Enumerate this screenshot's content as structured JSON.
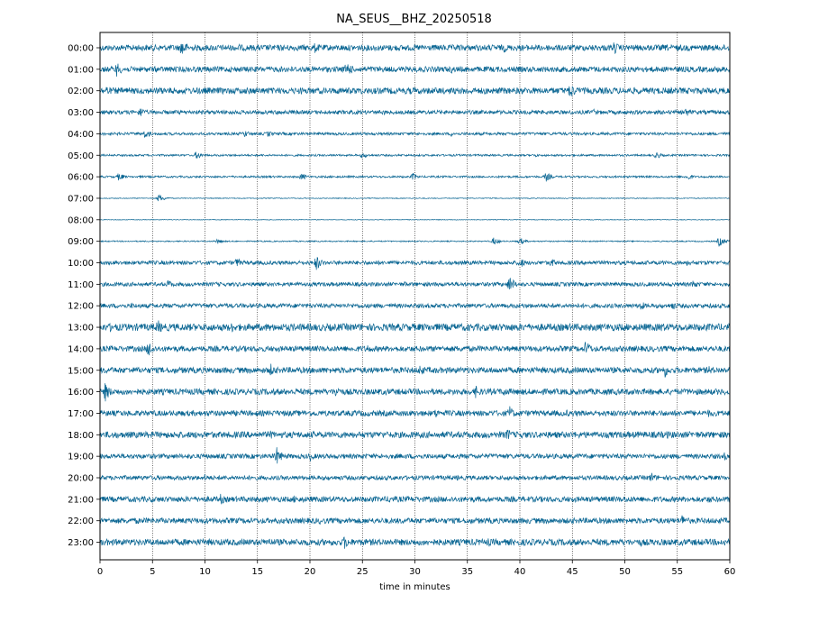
{
  "chart_data": {
    "type": "line",
    "title": "NA_SEUS__BHZ_20250518",
    "xlabel": "time in minutes",
    "ylabel": "",
    "xlim": [
      0,
      60
    ],
    "x_ticks": [
      "0",
      "5",
      "10",
      "15",
      "20",
      "25",
      "30",
      "35",
      "40",
      "45",
      "50",
      "55",
      "60"
    ],
    "grid": "vertical dotted lines every 5 minutes",
    "trace_color": "#0a6693",
    "rows": [
      {
        "label": "00:00",
        "noise": 0.3,
        "events": [
          [
            7.8,
            1.0
          ],
          [
            20.5,
            0.6
          ],
          [
            49.0,
            0.7
          ],
          [
            13.2,
            0.45
          ],
          [
            38.5,
            0.5
          ]
        ]
      },
      {
        "label": "01:00",
        "noise": 0.28,
        "events": [
          [
            1.6,
            0.8
          ],
          [
            23.5,
            0.9
          ],
          [
            33.5,
            0.45
          ],
          [
            58.5,
            0.4
          ]
        ]
      },
      {
        "label": "02:00",
        "noise": 0.32,
        "events": [
          [
            0.6,
            0.6
          ],
          [
            44.8,
            0.9
          ],
          [
            17.5,
            0.35
          ],
          [
            29.5,
            0.4
          ]
        ]
      },
      {
        "label": "03:00",
        "noise": 0.2,
        "events": [
          [
            3.8,
            0.6
          ],
          [
            55.8,
            0.5
          ],
          [
            27.0,
            0.3
          ],
          [
            47.0,
            0.35
          ]
        ]
      },
      {
        "label": "04:00",
        "noise": 0.14,
        "events": [
          [
            4.3,
            0.5
          ],
          [
            13.8,
            0.4
          ],
          [
            16.0,
            0.35
          ],
          [
            33.5,
            0.3
          ]
        ]
      },
      {
        "label": "05:00",
        "noise": 0.1,
        "events": [
          [
            9.2,
            0.45
          ],
          [
            25.0,
            0.35
          ],
          [
            53.0,
            0.4
          ],
          [
            41.5,
            0.2
          ]
        ]
      },
      {
        "label": "06:00",
        "noise": 0.1,
        "events": [
          [
            1.8,
            0.45
          ],
          [
            19.2,
            0.4
          ],
          [
            29.8,
            0.4
          ],
          [
            42.5,
            0.5
          ],
          [
            56.0,
            0.4
          ]
        ]
      },
      {
        "label": "07:00",
        "noise": 0.04,
        "events": [
          [
            5.6,
            0.45
          ]
        ]
      },
      {
        "label": "08:00",
        "noise": 0.03,
        "events": []
      },
      {
        "label": "09:00",
        "noise": 0.06,
        "events": [
          [
            11.2,
            0.3
          ],
          [
            37.5,
            0.4
          ],
          [
            40.0,
            0.4
          ],
          [
            59.0,
            0.55
          ]
        ]
      },
      {
        "label": "10:00",
        "noise": 0.2,
        "events": [
          [
            20.6,
            0.8
          ],
          [
            13.0,
            0.55
          ],
          [
            40.0,
            0.6
          ],
          [
            43.0,
            0.5
          ],
          [
            56.0,
            0.4
          ]
        ]
      },
      {
        "label": "11:00",
        "noise": 0.2,
        "events": [
          [
            39.0,
            0.9
          ],
          [
            6.5,
            0.5
          ],
          [
            56.5,
            0.5
          ],
          [
            29.0,
            0.3
          ]
        ]
      },
      {
        "label": "12:00",
        "noise": 0.22,
        "events": [
          [
            51.5,
            0.55
          ],
          [
            54.5,
            0.5
          ],
          [
            3.0,
            0.35
          ],
          [
            19.0,
            0.3
          ],
          [
            26.0,
            0.3
          ]
        ]
      },
      {
        "label": "13:00",
        "noise": 0.36,
        "events": [
          [
            5.5,
            0.8
          ],
          [
            12.5,
            0.6
          ],
          [
            45.0,
            0.5
          ],
          [
            53.5,
            0.6
          ],
          [
            1.0,
            0.5
          ]
        ]
      },
      {
        "label": "14:00",
        "noise": 0.28,
        "events": [
          [
            4.6,
            0.9
          ],
          [
            46.3,
            0.9
          ],
          [
            25.5,
            0.5
          ],
          [
            34.5,
            0.4
          ]
        ]
      },
      {
        "label": "15:00",
        "noise": 0.3,
        "events": [
          [
            16.3,
            0.7
          ],
          [
            30.5,
            0.65
          ],
          [
            53.8,
            0.8
          ],
          [
            58.0,
            0.5
          ],
          [
            8.0,
            0.4
          ]
        ]
      },
      {
        "label": "16:00",
        "noise": 0.3,
        "events": [
          [
            0.5,
            1.0
          ],
          [
            22.5,
            0.7
          ],
          [
            35.8,
            0.7
          ],
          [
            38.5,
            0.55
          ],
          [
            16.5,
            0.4
          ]
        ]
      },
      {
        "label": "17:00",
        "noise": 0.28,
        "events": [
          [
            39.0,
            0.8
          ],
          [
            32.0,
            0.55
          ],
          [
            44.5,
            0.4
          ],
          [
            58.0,
            0.45
          ]
        ]
      },
      {
        "label": "18:00",
        "noise": 0.32,
        "events": [
          [
            38.8,
            0.7
          ],
          [
            16.3,
            0.5
          ],
          [
            54.0,
            0.45
          ],
          [
            7.5,
            0.45
          ]
        ]
      },
      {
        "label": "19:00",
        "noise": 0.24,
        "events": [
          [
            16.8,
            1.0
          ],
          [
            20.0,
            0.5
          ],
          [
            59.5,
            0.45
          ]
        ]
      },
      {
        "label": "20:00",
        "noise": 0.22,
        "events": [
          [
            52.5,
            0.6
          ],
          [
            10.0,
            0.4
          ],
          [
            34.0,
            0.3
          ]
        ]
      },
      {
        "label": "21:00",
        "noise": 0.28,
        "events": [
          [
            11.5,
            0.6
          ],
          [
            18.5,
            0.45
          ],
          [
            27.5,
            0.5
          ],
          [
            50.0,
            0.4
          ],
          [
            58.0,
            0.45
          ]
        ]
      },
      {
        "label": "22:00",
        "noise": 0.28,
        "events": [
          [
            55.5,
            0.7
          ],
          [
            21.0,
            0.45
          ],
          [
            3.5,
            0.4
          ]
        ]
      },
      {
        "label": "23:00",
        "noise": 0.32,
        "events": [
          [
            16.0,
            0.6
          ],
          [
            23.3,
            0.75
          ],
          [
            37.0,
            0.5
          ],
          [
            51.5,
            0.45
          ],
          [
            59.5,
            0.45
          ]
        ]
      }
    ]
  }
}
